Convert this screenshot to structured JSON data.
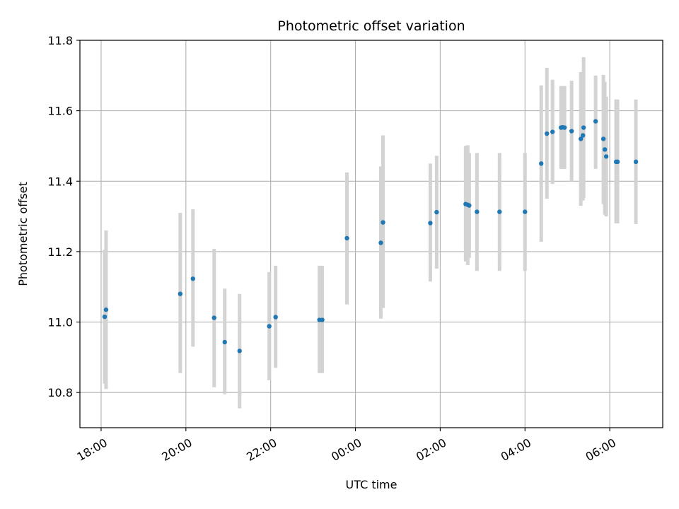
{
  "chart_data": {
    "type": "scatter",
    "title": "Photometric offset variation",
    "xlabel": "UTC time",
    "ylabel": "Photometric offset",
    "x_axis_kind": "time",
    "xlim": [
      "2023-01-01T17:30",
      "2023-01-02T07:15"
    ],
    "ylim": [
      10.7,
      11.8
    ],
    "x_ticks": [
      {
        "label": "18:00",
        "value": "2023-01-01T18:00"
      },
      {
        "label": "20:00",
        "value": "2023-01-01T20:00"
      },
      {
        "label": "22:00",
        "value": "2023-01-01T22:00"
      },
      {
        "label": "00:00",
        "value": "2023-01-02T00:00"
      },
      {
        "label": "02:00",
        "value": "2023-01-02T02:00"
      },
      {
        "label": "04:00",
        "value": "2023-01-02T04:00"
      },
      {
        "label": "06:00",
        "value": "2023-01-02T06:00"
      }
    ],
    "y_ticks": [
      10.8,
      11.0,
      11.2,
      11.4,
      11.6,
      11.8
    ],
    "y_tick_labels": [
      "10.8",
      "11.0",
      "11.2",
      "11.4",
      "11.6",
      "11.8"
    ],
    "grid": true,
    "marker_color": "#1f77b4",
    "errorbar_color": "#d3d3d3",
    "points": [
      {
        "x": "2023-01-01T18:05",
        "y": 11.015,
        "ylo": 10.825,
        "yhi": 11.205
      },
      {
        "x": "2023-01-01T18:07",
        "y": 11.035,
        "ylo": 10.81,
        "yhi": 11.26
      },
      {
        "x": "2023-01-01T19:52",
        "y": 11.08,
        "ylo": 10.855,
        "yhi": 11.31
      },
      {
        "x": "2023-01-01T20:10",
        "y": 11.123,
        "ylo": 10.93,
        "yhi": 11.32
      },
      {
        "x": "2023-01-01T20:40",
        "y": 11.012,
        "ylo": 10.815,
        "yhi": 11.208
      },
      {
        "x": "2023-01-01T20:55",
        "y": 10.943,
        "ylo": 10.795,
        "yhi": 11.095
      },
      {
        "x": "2023-01-01T21:16",
        "y": 10.918,
        "ylo": 10.755,
        "yhi": 11.08
      },
      {
        "x": "2023-01-01T21:58",
        "y": 10.988,
        "ylo": 10.835,
        "yhi": 11.142
      },
      {
        "x": "2023-01-01T22:07",
        "y": 11.014,
        "ylo": 10.87,
        "yhi": 11.16
      },
      {
        "x": "2023-01-01T23:09",
        "y": 11.006,
        "ylo": 10.855,
        "yhi": 11.16
      },
      {
        "x": "2023-01-01T23:13",
        "y": 11.006,
        "ylo": 10.855,
        "yhi": 11.16
      },
      {
        "x": "2023-01-01T23:48",
        "y": 11.238,
        "ylo": 11.05,
        "yhi": 11.425
      },
      {
        "x": "2023-01-02T00:36",
        "y": 11.225,
        "ylo": 11.01,
        "yhi": 11.442
      },
      {
        "x": "2023-01-02T00:39",
        "y": 11.283,
        "ylo": 11.04,
        "yhi": 11.53
      },
      {
        "x": "2023-01-02T01:46",
        "y": 11.281,
        "ylo": 11.115,
        "yhi": 11.45
      },
      {
        "x": "2023-01-02T01:55",
        "y": 11.312,
        "ylo": 11.152,
        "yhi": 11.472
      },
      {
        "x": "2023-01-02T02:36",
        "y": 11.335,
        "ylo": 11.172,
        "yhi": 11.5
      },
      {
        "x": "2023-01-02T02:39",
        "y": 11.333,
        "ylo": 11.162,
        "yhi": 11.502
      },
      {
        "x": "2023-01-02T02:41",
        "y": 11.331,
        "ylo": 11.182,
        "yhi": 11.48
      },
      {
        "x": "2023-01-02T02:52",
        "y": 11.313,
        "ylo": 11.145,
        "yhi": 11.48
      },
      {
        "x": "2023-01-02T03:24",
        "y": 11.313,
        "ylo": 11.145,
        "yhi": 11.48
      },
      {
        "x": "2023-01-02T04:00",
        "y": 11.313,
        "ylo": 11.145,
        "yhi": 11.48
      },
      {
        "x": "2023-01-02T04:23",
        "y": 11.45,
        "ylo": 11.228,
        "yhi": 11.672
      },
      {
        "x": "2023-01-02T04:31",
        "y": 11.535,
        "ylo": 11.35,
        "yhi": 11.722
      },
      {
        "x": "2023-01-02T04:39",
        "y": 11.54,
        "ylo": 11.392,
        "yhi": 11.688
      },
      {
        "x": "2023-01-02T04:51",
        "y": 11.552,
        "ylo": 11.435,
        "yhi": 11.67
      },
      {
        "x": "2023-01-02T04:53",
        "y": 11.553,
        "ylo": 11.435,
        "yhi": 11.67
      },
      {
        "x": "2023-01-02T04:56",
        "y": 11.552,
        "ylo": 11.435,
        "yhi": 11.67
      },
      {
        "x": "2023-01-02T05:06",
        "y": 11.542,
        "ylo": 11.4,
        "yhi": 11.685
      },
      {
        "x": "2023-01-02T05:19",
        "y": 11.52,
        "ylo": 11.33,
        "yhi": 11.71
      },
      {
        "x": "2023-01-02T05:22",
        "y": 11.53,
        "ylo": 11.345,
        "yhi": 11.7
      },
      {
        "x": "2023-01-02T05:23",
        "y": 11.552,
        "ylo": 11.352,
        "yhi": 11.752
      },
      {
        "x": "2023-01-02T05:40",
        "y": 11.57,
        "ylo": 11.435,
        "yhi": 11.7
      },
      {
        "x": "2023-01-02T05:51",
        "y": 11.52,
        "ylo": 11.335,
        "yhi": 11.702
      },
      {
        "x": "2023-01-02T05:53",
        "y": 11.49,
        "ylo": 11.305,
        "yhi": 11.682
      },
      {
        "x": "2023-01-02T05:55",
        "y": 11.47,
        "ylo": 11.3,
        "yhi": 11.64
      },
      {
        "x": "2023-01-02T06:09",
        "y": 11.455,
        "ylo": 11.28,
        "yhi": 11.632
      },
      {
        "x": "2023-01-02T06:11",
        "y": 11.455,
        "ylo": 11.28,
        "yhi": 11.632
      },
      {
        "x": "2023-01-02T06:37",
        "y": 11.455,
        "ylo": 11.278,
        "yhi": 11.632
      }
    ]
  }
}
